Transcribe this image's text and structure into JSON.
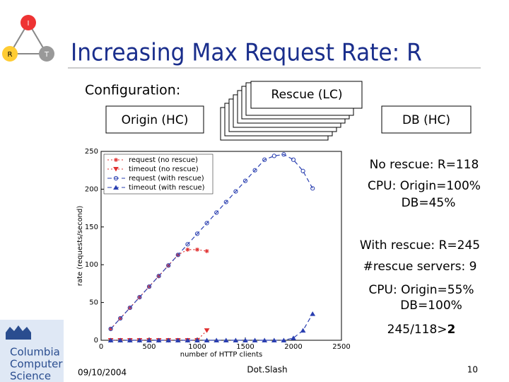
{
  "slide": {
    "title": "Increasing Max Request Rate: R",
    "config_label": "Configuration:",
    "boxes": [
      "Rescue (LC)",
      "Origin (HC)",
      "DB (HC)"
    ],
    "notes": [
      "No rescue: R=118",
      "CPU: Origin=100%",
      "DB=45%",
      "With rescue: R=245",
      "#rescue servers: 9",
      "CPU: Origin=55%",
      "DB=100%"
    ],
    "ratio": "245/118>",
    "ratio_bold": "2",
    "icon": [
      "I",
      "R",
      "T"
    ],
    "logo": [
      "Columbia",
      "Computer",
      "Science"
    ],
    "footer": {
      "date": "09/10/2004",
      "center": "Dot.Slash",
      "page": "10"
    }
  },
  "chart_data": {
    "type": "line",
    "xlabel": "number of HTTP clients",
    "ylabel": "rate (requests/second)",
    "xlim": [
      0,
      2500
    ],
    "xticks": [
      0,
      500,
      1000,
      1500,
      2000,
      2500
    ],
    "ylim": [
      0,
      250
    ],
    "yticks": [
      0,
      50,
      100,
      150,
      200,
      250
    ],
    "legend": "upper left",
    "series": [
      {
        "name": "request (no rescue)",
        "color": "#e03030",
        "marker": "star",
        "dash": "2,3",
        "x": [
          100,
          200,
          300,
          400,
          500,
          600,
          700,
          800,
          900,
          1000,
          1100
        ],
        "values": [
          15,
          29,
          43,
          57,
          71,
          85,
          99,
          113,
          120,
          120,
          118
        ]
      },
      {
        "name": "timeout (no rescue)",
        "color": "#e03030",
        "marker": "tri-down",
        "dash": "2,3",
        "x": [
          100,
          200,
          300,
          400,
          500,
          600,
          700,
          800,
          900,
          1000,
          1100
        ],
        "values": [
          0,
          0,
          0,
          0,
          0,
          0,
          0,
          0,
          0,
          0,
          13
        ]
      },
      {
        "name": "request (with rescue)",
        "color": "#2a3fb0",
        "marker": "circle",
        "dash": "6,4",
        "x": [
          100,
          200,
          300,
          400,
          500,
          600,
          700,
          800,
          900,
          1000,
          1100,
          1200,
          1300,
          1400,
          1500,
          1600,
          1700,
          1800,
          1900,
          2000,
          2100,
          2200
        ],
        "values": [
          15,
          29,
          43,
          57,
          71,
          85,
          99,
          113,
          127,
          141,
          155,
          169,
          183,
          197,
          211,
          225,
          239,
          244,
          246,
          239,
          224,
          201
        ]
      },
      {
        "name": "timeout (with rescue)",
        "color": "#2a3fb0",
        "marker": "tri-up",
        "dash": "6,4",
        "x": [
          100,
          200,
          300,
          400,
          500,
          600,
          700,
          800,
          900,
          1000,
          1100,
          1200,
          1300,
          1400,
          1500,
          1600,
          1700,
          1800,
          1900,
          2000,
          2100,
          2200
        ],
        "values": [
          0,
          0,
          0,
          0,
          0,
          0,
          0,
          0,
          0,
          0,
          0,
          0,
          0,
          0,
          0,
          0,
          0,
          0,
          0,
          3,
          13,
          35
        ]
      }
    ]
  }
}
